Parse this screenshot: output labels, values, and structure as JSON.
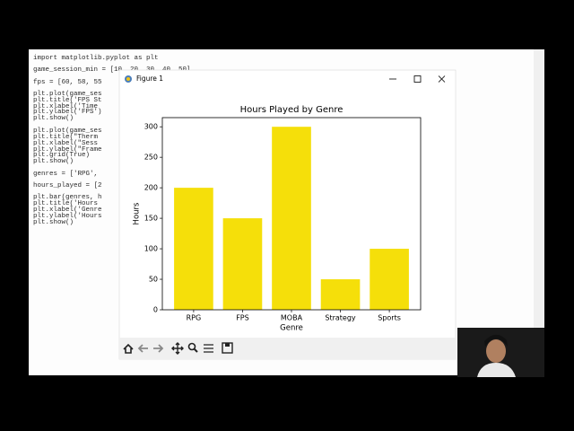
{
  "editor": {
    "code_lines": [
      "import matplotlib.pyplot as plt",
      "game_session_min = [10, 20, 30, 40, 50]",
      "fps = [60, 58, 55",
      "plt.plot(game_ses",
      "plt.title('FPS St",
      "plt.xlabel('Time",
      "plt.ylabel('FPS')",
      "plt.show()",
      "plt.plot(game_ses",
      "plt.title(\"Therm",
      "plt.xlabel(\"Sess",
      "plt.ylabel(\"Frame",
      "plt.grid(True)",
      "plt.show()",
      "genres = ['RPG',",
      "hours_played = [2",
      "plt.bar(genres, h",
      "plt.title('Hours",
      "plt.xlabel('Genre",
      "plt.ylabel('Hours",
      "plt.show()"
    ]
  },
  "window": {
    "title": "Figure 1"
  },
  "chart_data": {
    "type": "bar",
    "title": "Hours Played by Genre",
    "x_label": "Genre",
    "y_label": "Hours",
    "categories": [
      "RPG",
      "FPS",
      "MOBA",
      "Strategy",
      "Sports"
    ],
    "values": [
      200,
      150,
      300,
      50,
      100
    ],
    "color": "#f5df0a",
    "ylim": [
      0,
      315
    ],
    "yticks": [
      0,
      50,
      100,
      150,
      200,
      250,
      300
    ],
    "grid": false
  }
}
